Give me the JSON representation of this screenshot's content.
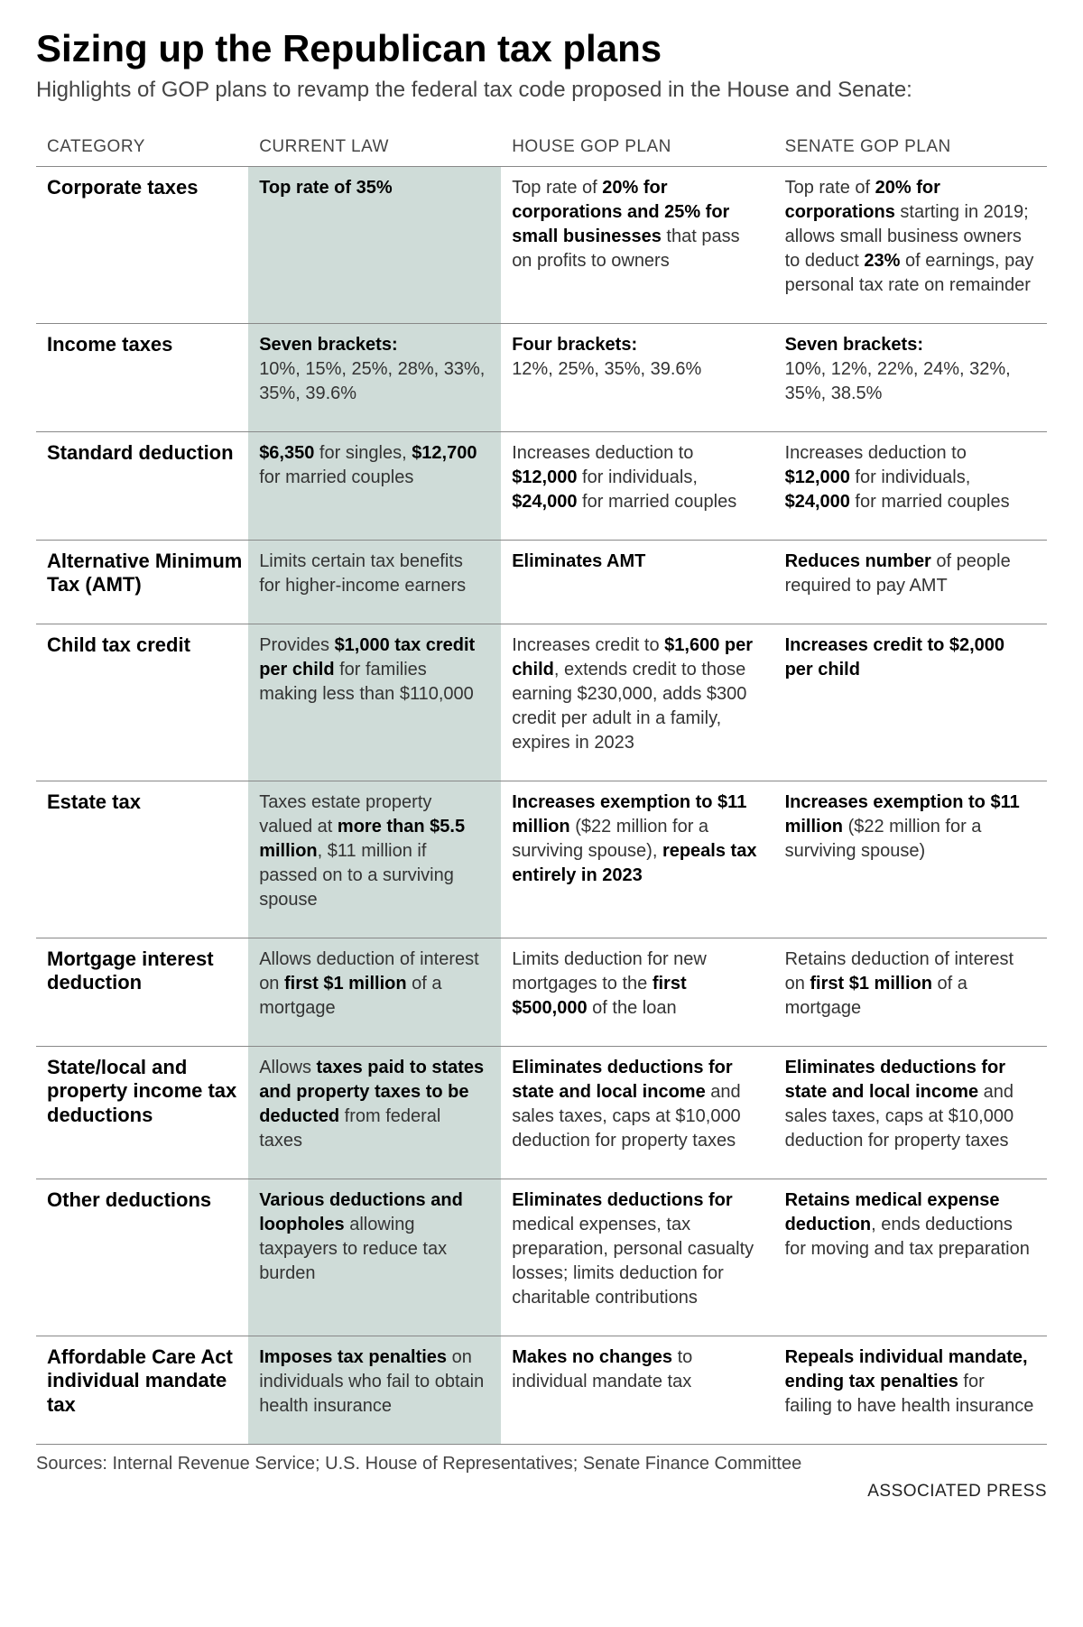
{
  "title": "Sizing up the Republican tax plans",
  "subtitle": "Highlights of GOP plans to revamp the federal tax code proposed in the House and Senate:",
  "columns": {
    "category": "CATEGORY",
    "current": "CURRENT LAW",
    "house": "HOUSE GOP PLAN",
    "senate": "SENATE GOP PLAN"
  },
  "rows": [
    {
      "category": "Corporate taxes",
      "current": "<b>Top rate of 35%</b>",
      "house": "Top rate of <b>20% for corporations and 25% for small businesses</b> that pass on profits to owners",
      "senate": "Top rate of <b>20% for corporations</b> starting in 2019; allows small business owners to deduct <b>23%</b> of earnings, pay personal tax rate on remainder"
    },
    {
      "category": "Income taxes",
      "current": "<b>Seven brackets:</b><br>10%, 15%, 25%, 28%, 33%, 35%, 39.6%",
      "house": "<b>Four brackets:</b><br>12%, 25%, 35%, 39.6%",
      "senate": "<b>Seven brackets:</b><br>10%, 12%, 22%, 24%, 32%, 35%, 38.5%"
    },
    {
      "category": "Standard deduction",
      "current": "<b>$6,350</b> for singles, <b>$12,700</b> for married couples",
      "house": "Increases deduction to <b>$12,000</b> for individuals, <b>$24,000</b> for married couples",
      "senate": "Increases deduction to <b>$12,000</b> for individuals, <b>$24,000</b> for married couples"
    },
    {
      "category": "Alternative Minimum Tax (AMT)",
      "current": "Limits certain tax benefits for higher-income earners",
      "house": "<b>Eliminates AMT</b>",
      "senate": "<b>Reduces number</b> of people required to pay AMT"
    },
    {
      "category": "Child tax credit",
      "current": "Provides <b>$1,000 tax credit per child</b> for families making less than $110,000",
      "house": "Increases credit to <b>$1,600 per child</b>, extends credit to those earning $230,000, adds $300 credit per adult in a family, expires in 2023",
      "senate": "<b>Increases credit to $2,000 per child</b>"
    },
    {
      "category": "Estate tax",
      "current": "Taxes estate property valued at <b>more than $5.5 million</b>, $11 million if passed on to a surviving spouse",
      "house": "<b>Increases exemption to $11 million</b> ($22 million for a surviving spouse), <b>repeals tax entirely in 2023</b>",
      "senate": "<b>Increases exemption to $11 million</b> ($22 million for a surviving spouse)"
    },
    {
      "category": "Mortgage interest deduction",
      "current": "Allows deduction of interest on <b>first $1 million</b> of a mortgage",
      "house": "Limits deduction for new mortgages to the <b>first $500,000</b> of the loan",
      "senate": "Retains deduction of interest on <b>first $1 million</b> of a mortgage"
    },
    {
      "category": "State/local and property income tax deductions",
      "current": "Allows <b>taxes paid to states and property taxes to be deducted</b> from federal taxes",
      "house": "<b>Eliminates deductions for state and local income</b> and sales taxes, caps at $10,000 deduction for property taxes",
      "senate": "<b>Eliminates deductions for state and local income</b> and sales taxes, caps at $10,000 deduction for property taxes"
    },
    {
      "category": "Other deductions",
      "current": "<b>Various deductions and loopholes</b> allowing taxpayers to reduce tax burden",
      "house": "<b>Eliminates deductions for</b> medical expenses, tax preparation, personal casualty losses; limits deduction for charitable contributions",
      "senate": "<b>Retains medical expense deduction</b>, ends deductions for moving and tax preparation"
    },
    {
      "category": "Affordable Care Act individual mandate tax",
      "current": "<b>Imposes tax penalties</b> on individuals who fail to obtain health insurance",
      "house": "<b>Makes no changes</b> to individual mandate tax",
      "senate": "<b>Repeals individual mandate, ending tax penalties</b> for failing to have health insurance"
    }
  ],
  "sources": "Sources: Internal Revenue Service; U.S. House of Representatives; Senate Finance Committee",
  "credit": "ASSOCIATED PRESS",
  "style": {
    "highlight_bg": "#cfdcd8",
    "border_color": "#888888",
    "title_fontsize": 42,
    "subtitle_fontsize": 24,
    "header_fontsize": 19,
    "cell_fontsize": 20,
    "category_fontsize": 22
  }
}
